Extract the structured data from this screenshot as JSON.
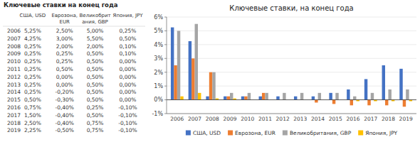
{
  "chart_data": [
    {
      "type": "bar",
      "title": "Ключевые ставки, на конец года",
      "categories": [
        2006,
        2007,
        2008,
        2009,
        2010,
        2011,
        2012,
        2013,
        2014,
        2015,
        2016,
        2017,
        2018,
        2019
      ],
      "series": [
        {
          "name": "США, USD",
          "color": "#4472c4",
          "values": [
            5.25,
            4.25,
            0.25,
            0.25,
            0.25,
            0.25,
            0.25,
            0.25,
            0.25,
            0.5,
            0.75,
            1.5,
            2.5,
            2.25
          ]
        },
        {
          "name": "Еврозона, EUR",
          "color": "#ed7d31",
          "values": [
            2.5,
            3.0,
            2.0,
            0.25,
            0.25,
            0.5,
            0.0,
            0.0,
            -0.2,
            -0.3,
            -0.4,
            -0.4,
            -0.4,
            -0.5
          ]
        },
        {
          "name": "Великобритания, GBP",
          "color": "#a5a5a5",
          "values": [
            5.0,
            5.5,
            2.0,
            0.5,
            0.5,
            0.5,
            0.5,
            0.5,
            0.5,
            0.5,
            0.25,
            0.5,
            0.75,
            0.75
          ]
        },
        {
          "name": "Япония, JPY",
          "color": "#ffc000",
          "values": [
            0.25,
            0.5,
            0.1,
            0.1,
            0.0,
            0.0,
            0.0,
            0.0,
            0.0,
            0.0,
            -0.1,
            -0.1,
            -0.1,
            -0.1
          ]
        }
      ],
      "ylim": [
        -1,
        6
      ],
      "yticks": [
        {
          "value": -1,
          "label": "-1%"
        },
        {
          "value": 0,
          "label": "0%"
        },
        {
          "value": 1,
          "label": "1%"
        },
        {
          "value": 2,
          "label": "2%"
        },
        {
          "value": 3,
          "label": "3%"
        },
        {
          "value": 4,
          "label": "4%"
        },
        {
          "value": 5,
          "label": "5%"
        },
        {
          "value": 6,
          "label": "6%"
        }
      ],
      "grid": true,
      "legend": "bottom"
    },
    {
      "type": "table",
      "title": "Ключевые ставки на конец года",
      "categories": [
        2006,
        2007,
        2008,
        2009,
        2010,
        2011,
        2012,
        2013,
        2014,
        2015,
        2016,
        2017,
        2018,
        2019
      ],
      "series": [
        {
          "name": "США, USD",
          "values": [
            5.25,
            4.25,
            0.25,
            0.25,
            0.25,
            0.25,
            0.25,
            0.25,
            0.25,
            0.5,
            0.75,
            1.5,
            2.5,
            2.25
          ],
          "value_labels": [
            "5,25%",
            "4,25%",
            "0,25%",
            "0,25%",
            "0,25%",
            "0,25%",
            "0,25%",
            "0,25%",
            "0,25%",
            "0,50%",
            "0,75%",
            "1,50%",
            "2,50%",
            "2,25%"
          ]
        },
        {
          "name": "Еврозона,\nEUR",
          "values": [
            2.5,
            3.0,
            2.0,
            0.25,
            0.25,
            0.5,
            0.0,
            0.0,
            -0.2,
            -0.3,
            -0.4,
            -0.4,
            -0.4,
            -0.5
          ],
          "value_labels": [
            "2,50%",
            "3,00%",
            "2,00%",
            "0,25%",
            "0,25%",
            "0,50%",
            "0,00%",
            "0,00%",
            "-0,20%",
            "-0,30%",
            "-0,40%",
            "-0,40%",
            "-0,40%",
            "-0,50%"
          ]
        },
        {
          "name": "Великобрит\nания, GBP",
          "values": [
            5.0,
            5.5,
            2.0,
            0.5,
            0.5,
            0.5,
            0.5,
            0.5,
            0.5,
            0.5,
            0.25,
            0.5,
            0.75,
            0.75
          ],
          "value_labels": [
            "5,00%",
            "5,50%",
            "2,00%",
            "0,50%",
            "0,50%",
            "0,50%",
            "0,50%",
            "0,50%",
            "0,50%",
            "0,50%",
            "0,25%",
            "0,50%",
            "0,75%",
            "0,75%"
          ]
        },
        {
          "name": "Япония, JPY",
          "values": [
            0.25,
            0.5,
            0.1,
            0.1,
            0.0,
            0.0,
            0.0,
            0.0,
            0.0,
            0.0,
            -0.1,
            -0.1,
            -0.1,
            -0.1
          ],
          "value_labels": [
            "0,25%",
            "0,50%",
            "0,10%",
            "0,10%",
            "0,00%",
            "0,00%",
            "0,00%",
            "0,00%",
            "0,00%",
            "0,00%",
            "-0,10%",
            "-0,10%",
            "-0,10%",
            "-0,10%"
          ]
        }
      ]
    }
  ]
}
